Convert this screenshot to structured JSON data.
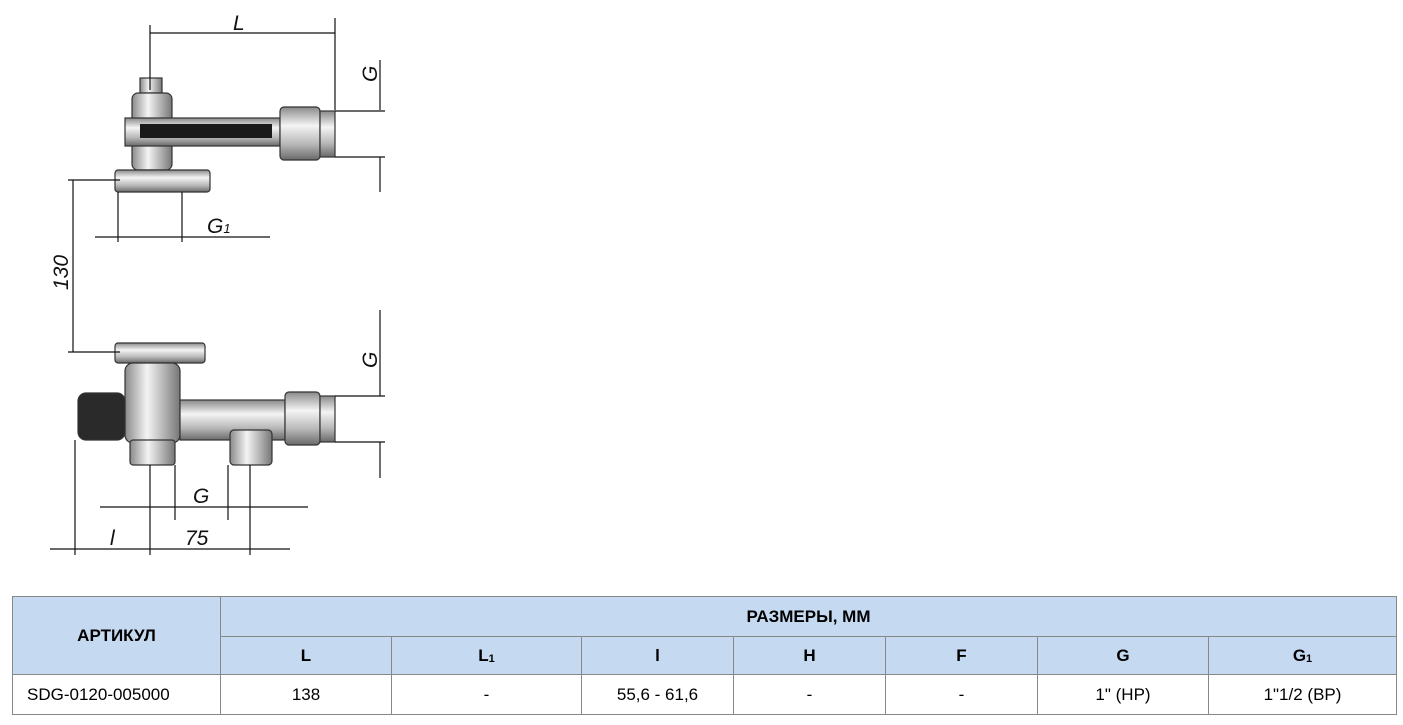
{
  "drawing": {
    "labels": [
      {
        "main": "L"
      },
      {
        "main": "G"
      },
      {
        "main": "G",
        "sub": "1"
      },
      {
        "main": "130"
      },
      {
        "main": "G"
      },
      {
        "main": "G"
      },
      {
        "main": "l"
      },
      {
        "main": "75"
      }
    ]
  },
  "table": {
    "header": {
      "article": "АРТИКУЛ",
      "dimensions": "РАЗМЕРЫ, ММ",
      "columns": [
        {
          "main": "L"
        },
        {
          "main": "L",
          "sub": "1"
        },
        {
          "main": "l"
        },
        {
          "main": "H"
        },
        {
          "main": "F"
        },
        {
          "main": "G"
        },
        {
          "main": "G",
          "sub": "1"
        }
      ]
    },
    "rows": [
      [
        "SDG-0120-005000",
        "138",
        "-",
        "55,6 - 61,6",
        "-",
        "-",
        "1\" (НР)",
        "1\"1/2 (ВР)"
      ]
    ]
  }
}
